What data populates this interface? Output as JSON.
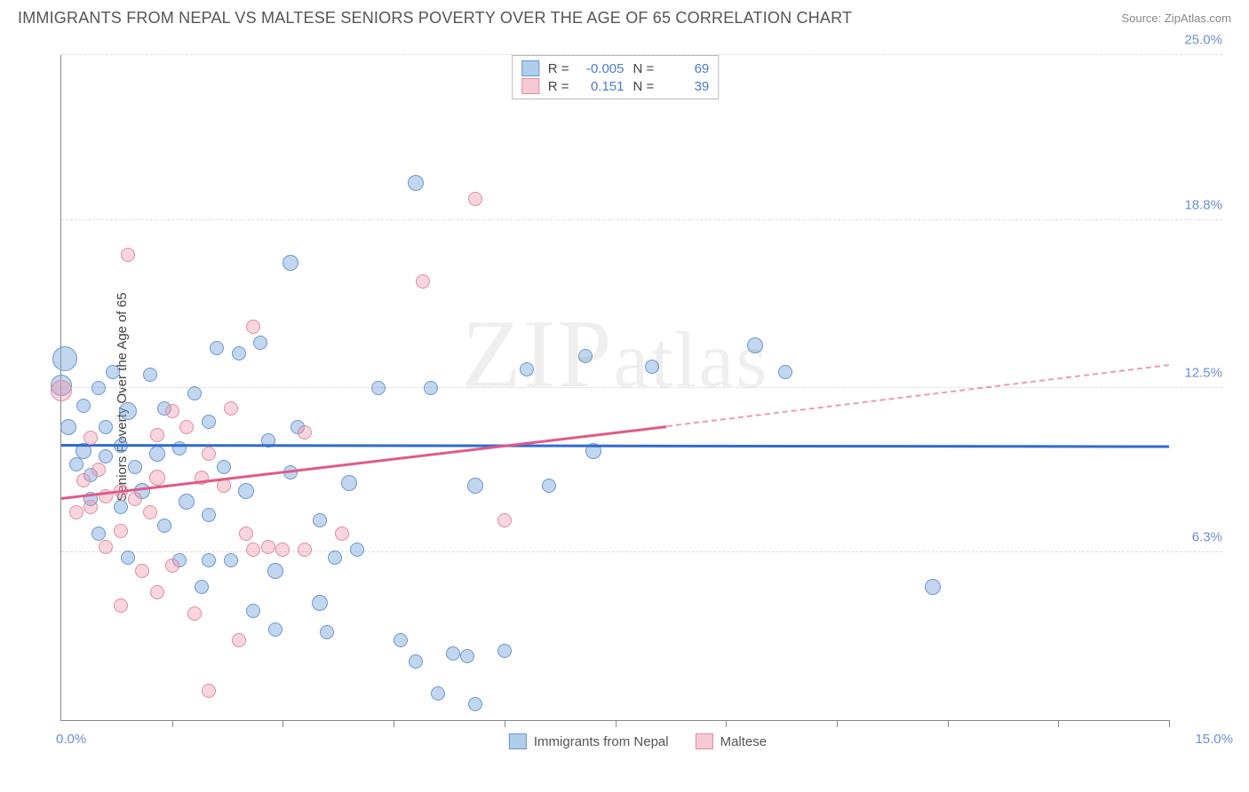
{
  "header": {
    "title": "IMMIGRANTS FROM NEPAL VS MALTESE SENIORS POVERTY OVER THE AGE OF 65 CORRELATION CHART",
    "source_prefix": "Source: ",
    "source_name": "ZipAtlas.com"
  },
  "chart": {
    "type": "scatter",
    "ylabel": "Seniors Poverty Over the Age of 65",
    "xlim": [
      0,
      15
    ],
    "ylim": [
      0,
      25
    ],
    "xlabel_min": "0.0%",
    "xlabel_max": "15.0%",
    "yticks": [
      {
        "v": 6.3,
        "label": "6.3%"
      },
      {
        "v": 12.5,
        "label": "12.5%"
      },
      {
        "v": 18.8,
        "label": "18.8%"
      },
      {
        "v": 25.0,
        "label": "25.0%"
      }
    ],
    "xtick_positions": [
      1.5,
      3.0,
      4.5,
      6.0,
      7.5,
      9.0,
      10.5,
      12.0,
      13.5,
      15.0
    ],
    "grid_color": "#dddddd",
    "axis_color": "#888888",
    "background_color": "#ffffff",
    "watermark": "ZIPatlas",
    "series": [
      {
        "id": "nepal",
        "label": "Immigrants from Nepal",
        "color_fill": "rgba(120,165,220,0.45)",
        "color_stroke": "#6a98d0",
        "trend_color": "#2f6bd0",
        "trend": {
          "x1": 0,
          "y1": 10.3,
          "x2": 15,
          "y2": 10.25,
          "dashed_from": 15
        },
        "stats": {
          "R": "-0.005",
          "N": "69"
        },
        "points": [
          {
            "x": 4.8,
            "y": 20.2,
            "r": 9
          },
          {
            "x": 3.1,
            "y": 17.2,
            "r": 9
          },
          {
            "x": 0.05,
            "y": 13.6,
            "r": 14
          },
          {
            "x": 0.0,
            "y": 12.6,
            "r": 12
          },
          {
            "x": 0.1,
            "y": 11.0,
            "r": 9
          },
          {
            "x": 0.9,
            "y": 11.6,
            "r": 10
          },
          {
            "x": 0.6,
            "y": 11.0,
            "r": 8
          },
          {
            "x": 1.4,
            "y": 11.7,
            "r": 8
          },
          {
            "x": 1.3,
            "y": 10.0,
            "r": 9
          },
          {
            "x": 1.6,
            "y": 10.2,
            "r": 8
          },
          {
            "x": 0.3,
            "y": 10.1,
            "r": 9
          },
          {
            "x": 0.6,
            "y": 9.9,
            "r": 8
          },
          {
            "x": 0.8,
            "y": 10.3,
            "r": 8
          },
          {
            "x": 1.0,
            "y": 9.5,
            "r": 8
          },
          {
            "x": 0.4,
            "y": 9.2,
            "r": 8
          },
          {
            "x": 0.2,
            "y": 9.6,
            "r": 8
          },
          {
            "x": 1.1,
            "y": 8.6,
            "r": 9
          },
          {
            "x": 1.7,
            "y": 8.2,
            "r": 9
          },
          {
            "x": 2.5,
            "y": 8.6,
            "r": 9
          },
          {
            "x": 2.0,
            "y": 11.2,
            "r": 8
          },
          {
            "x": 1.8,
            "y": 12.3,
            "r": 8
          },
          {
            "x": 2.4,
            "y": 13.8,
            "r": 8
          },
          {
            "x": 2.1,
            "y": 14.0,
            "r": 8
          },
          {
            "x": 2.7,
            "y": 14.2,
            "r": 8
          },
          {
            "x": 3.2,
            "y": 11.0,
            "r": 8
          },
          {
            "x": 3.5,
            "y": 7.5,
            "r": 8
          },
          {
            "x": 3.9,
            "y": 8.9,
            "r": 9
          },
          {
            "x": 4.3,
            "y": 12.5,
            "r": 8
          },
          {
            "x": 5.0,
            "y": 12.5,
            "r": 8
          },
          {
            "x": 5.6,
            "y": 8.8,
            "r": 9
          },
          {
            "x": 6.3,
            "y": 13.2,
            "r": 8
          },
          {
            "x": 6.6,
            "y": 8.8,
            "r": 8
          },
          {
            "x": 7.1,
            "y": 13.7,
            "r": 8
          },
          {
            "x": 7.2,
            "y": 10.1,
            "r": 9
          },
          {
            "x": 8.0,
            "y": 13.3,
            "r": 8
          },
          {
            "x": 9.4,
            "y": 14.1,
            "r": 9
          },
          {
            "x": 9.8,
            "y": 13.1,
            "r": 8
          },
          {
            "x": 11.8,
            "y": 5.0,
            "r": 9
          },
          {
            "x": 0.5,
            "y": 12.5,
            "r": 8
          },
          {
            "x": 1.6,
            "y": 6.0,
            "r": 8
          },
          {
            "x": 0.9,
            "y": 6.1,
            "r": 8
          },
          {
            "x": 2.0,
            "y": 6.0,
            "r": 8
          },
          {
            "x": 2.3,
            "y": 6.0,
            "r": 8
          },
          {
            "x": 2.9,
            "y": 5.6,
            "r": 9
          },
          {
            "x": 2.9,
            "y": 3.4,
            "r": 8
          },
          {
            "x": 2.6,
            "y": 4.1,
            "r": 8
          },
          {
            "x": 3.5,
            "y": 4.4,
            "r": 9
          },
          {
            "x": 3.6,
            "y": 3.3,
            "r": 8
          },
          {
            "x": 4.6,
            "y": 3.0,
            "r": 8
          },
          {
            "x": 4.8,
            "y": 2.2,
            "r": 8
          },
          {
            "x": 5.3,
            "y": 2.5,
            "r": 8
          },
          {
            "x": 5.6,
            "y": 0.6,
            "r": 8
          },
          {
            "x": 5.5,
            "y": 2.4,
            "r": 8
          },
          {
            "x": 6.0,
            "y": 2.6,
            "r": 8
          },
          {
            "x": 5.1,
            "y": 1.0,
            "r": 8
          },
          {
            "x": 0.3,
            "y": 11.8,
            "r": 8
          },
          {
            "x": 1.2,
            "y": 13.0,
            "r": 8
          },
          {
            "x": 2.2,
            "y": 9.5,
            "r": 8
          },
          {
            "x": 2.0,
            "y": 7.7,
            "r": 8
          },
          {
            "x": 0.8,
            "y": 8.0,
            "r": 8
          },
          {
            "x": 1.4,
            "y": 7.3,
            "r": 8
          },
          {
            "x": 0.4,
            "y": 8.3,
            "r": 8
          },
          {
            "x": 2.8,
            "y": 10.5,
            "r": 8
          },
          {
            "x": 3.1,
            "y": 9.3,
            "r": 8
          },
          {
            "x": 3.7,
            "y": 6.1,
            "r": 8
          },
          {
            "x": 4.0,
            "y": 6.4,
            "r": 8
          },
          {
            "x": 0.5,
            "y": 7.0,
            "r": 8
          },
          {
            "x": 1.9,
            "y": 5.0,
            "r": 8
          },
          {
            "x": 0.7,
            "y": 13.1,
            "r": 8
          }
        ]
      },
      {
        "id": "maltese",
        "label": "Maltese",
        "color_fill": "rgba(240,150,170,0.40)",
        "color_stroke": "#e08da2",
        "trend_color": "#e05a87",
        "trend": {
          "x1": 0,
          "y1": 8.3,
          "x2": 8.2,
          "y2": 11.0,
          "dashed_from": 8.2,
          "x3": 15,
          "y3": 13.3
        },
        "stats": {
          "R": "0.151",
          "N": "39"
        },
        "points": [
          {
            "x": 5.6,
            "y": 19.6,
            "r": 8
          },
          {
            "x": 4.9,
            "y": 16.5,
            "r": 8
          },
          {
            "x": 0.0,
            "y": 12.4,
            "r": 12
          },
          {
            "x": 0.9,
            "y": 17.5,
            "r": 8
          },
          {
            "x": 1.3,
            "y": 9.1,
            "r": 9
          },
          {
            "x": 0.5,
            "y": 9.4,
            "r": 8
          },
          {
            "x": 0.3,
            "y": 9.0,
            "r": 8
          },
          {
            "x": 0.6,
            "y": 8.4,
            "r": 8
          },
          {
            "x": 0.8,
            "y": 8.6,
            "r": 8
          },
          {
            "x": 1.0,
            "y": 8.3,
            "r": 8
          },
          {
            "x": 0.4,
            "y": 8.0,
            "r": 8
          },
          {
            "x": 0.8,
            "y": 7.1,
            "r": 8
          },
          {
            "x": 0.6,
            "y": 6.5,
            "r": 8
          },
          {
            "x": 1.2,
            "y": 7.8,
            "r": 8
          },
          {
            "x": 1.5,
            "y": 11.6,
            "r": 8
          },
          {
            "x": 1.7,
            "y": 11.0,
            "r": 8
          },
          {
            "x": 2.3,
            "y": 11.7,
            "r": 8
          },
          {
            "x": 2.0,
            "y": 10.0,
            "r": 8
          },
          {
            "x": 2.5,
            "y": 7.0,
            "r": 8
          },
          {
            "x": 2.8,
            "y": 6.5,
            "r": 8
          },
          {
            "x": 2.2,
            "y": 8.8,
            "r": 8
          },
          {
            "x": 2.6,
            "y": 14.8,
            "r": 8
          },
          {
            "x": 3.3,
            "y": 10.8,
            "r": 8
          },
          {
            "x": 3.0,
            "y": 6.4,
            "r": 8
          },
          {
            "x": 3.3,
            "y": 6.4,
            "r": 8
          },
          {
            "x": 3.8,
            "y": 7.0,
            "r": 8
          },
          {
            "x": 1.1,
            "y": 5.6,
            "r": 8
          },
          {
            "x": 0.8,
            "y": 4.3,
            "r": 8
          },
          {
            "x": 1.3,
            "y": 4.8,
            "r": 8
          },
          {
            "x": 1.8,
            "y": 4.0,
            "r": 8
          },
          {
            "x": 2.0,
            "y": 1.1,
            "r": 8
          },
          {
            "x": 2.4,
            "y": 3.0,
            "r": 8
          },
          {
            "x": 2.6,
            "y": 6.4,
            "r": 8
          },
          {
            "x": 1.5,
            "y": 5.8,
            "r": 8
          },
          {
            "x": 6.0,
            "y": 7.5,
            "r": 8
          },
          {
            "x": 0.4,
            "y": 10.6,
            "r": 8
          },
          {
            "x": 1.3,
            "y": 10.7,
            "r": 8
          },
          {
            "x": 1.9,
            "y": 9.1,
            "r": 8
          },
          {
            "x": 0.2,
            "y": 7.8,
            "r": 8
          }
        ]
      }
    ],
    "legend_swatch": {
      "nepal_fill": "#b0cdec",
      "nepal_border": "#6a98d0",
      "maltese_fill": "#f7c9d4",
      "maltese_border": "#e08da2"
    },
    "stat_labels": {
      "R": "R =",
      "N": "N ="
    }
  }
}
